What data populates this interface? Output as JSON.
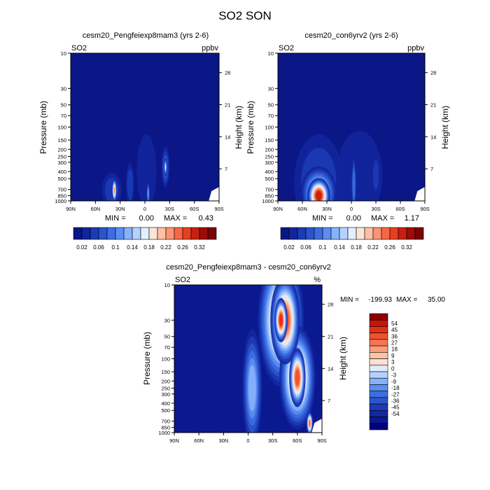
{
  "title": "SO2 SON",
  "colors": {
    "navy": "#000080",
    "abs_scale": [
      "#0b1687",
      "#12259c",
      "#1a3bb3",
      "#2a54cc",
      "#3d6ee0",
      "#5b8ef0",
      "#86b1fb",
      "#b5d1fd",
      "#e3effe",
      "#fde4d8",
      "#fcc0a6",
      "#fa9474",
      "#f56845",
      "#e8401f",
      "#c72010",
      "#9c0d08",
      "#7a0504"
    ],
    "diff_scale": [
      "#000080",
      "#0a198f",
      "#13279f",
      "#1d3bb5",
      "#2b55cc",
      "#3d6ee0",
      "#5b8ef0",
      "#86b1fb",
      "#b5d1fd",
      "#e0ebfe",
      "#fde2d3",
      "#fcc3a6",
      "#fb9c7c",
      "#f57550",
      "#ee5230",
      "#e33015",
      "#c41508",
      "#8b0000"
    ]
  },
  "chart_data": [
    {
      "type": "heatmap",
      "title": "cesm20_Pengfeiexp8mam3 (yrs 2-6)",
      "variable": "SO2",
      "units": "ppbv",
      "ylabel": "Pressure (mb)",
      "ylabel_right": "Height (km)",
      "x_ticks": [
        "90N",
        "60N",
        "30N",
        "0",
        "30S",
        "60S",
        "90S"
      ],
      "y_ticks": [
        10,
        30,
        50,
        70,
        100,
        150,
        200,
        250,
        300,
        400,
        500,
        700,
        850,
        1000
      ],
      "y_right_ticks": [
        28,
        21,
        14,
        7
      ],
      "ylim": [
        1000,
        10
      ],
      "stats": {
        "min_label": "MIN =",
        "min": "0.00",
        "max_label": "MAX =",
        "max": "0.43"
      },
      "colorbar_labels": [
        "0.02",
        "0.06",
        "0.1",
        "0.14",
        "0.18",
        "0.22",
        "0.26",
        "0.32"
      ],
      "features": [
        {
          "lat": -2,
          "p": 400,
          "w": 12,
          "h": 0.25,
          "level": 1
        },
        {
          "lat": -25,
          "p": 350,
          "w": 5,
          "h": 0.14,
          "level": 3
        },
        {
          "lat": -25,
          "p": 350,
          "w": 2,
          "h": 0.06,
          "level": 7
        },
        {
          "lat": 37,
          "p": 720,
          "w": 3,
          "h": 0.08,
          "level": 11
        },
        {
          "lat": 40,
          "p": 720,
          "w": 12,
          "h": 0.12,
          "level": 2
        },
        {
          "lat": 18,
          "p": 600,
          "w": 5,
          "h": 0.15,
          "level": 2
        },
        {
          "lat": -4,
          "p": 800,
          "w": 2,
          "h": 0.08,
          "level": 5
        }
      ]
    },
    {
      "type": "heatmap",
      "title": "cesm20_con6yrv2 (yrs 2-6)",
      "variable": "SO2",
      "units": "ppbv",
      "ylabel": "Pressure (mb)",
      "ylabel_right": "Height (km)",
      "x_ticks": [
        "90N",
        "60N",
        "30N",
        "0",
        "30S",
        "60S",
        "90S"
      ],
      "y_ticks": [
        10,
        30,
        50,
        70,
        100,
        150,
        200,
        250,
        300,
        400,
        500,
        700,
        850,
        1000
      ],
      "y_right_ticks": [
        28,
        21,
        14,
        7
      ],
      "ylim": [
        1000,
        10
      ],
      "stats": {
        "min_label": "MIN =",
        "min": "0.00",
        "max_label": "MAX =",
        "max": "1.17"
      },
      "colorbar_labels": [
        "0.02",
        "0.06",
        "0.1",
        "0.14",
        "0.18",
        "0.22",
        "0.26",
        "0.32"
      ],
      "features": [
        {
          "lat": -10,
          "p": 450,
          "w": 28,
          "h": 0.3,
          "level": 1
        },
        {
          "lat": 40,
          "p": 550,
          "w": 30,
          "h": 0.32,
          "level": 2
        },
        {
          "lat": 40,
          "p": 780,
          "w": 22,
          "h": 0.18,
          "level": 8
        },
        {
          "lat": 40,
          "p": 850,
          "w": 14,
          "h": 0.12,
          "level": 14
        },
        {
          "lat": -3,
          "p": 600,
          "w": 3,
          "h": 0.2,
          "level": 4
        },
        {
          "lat": -30,
          "p": 450,
          "w": 5,
          "h": 0.14,
          "level": 2
        }
      ]
    },
    {
      "type": "heatmap",
      "title": "cesm20_Pengfeiexp8mam3 - cesm20_con6yrv2",
      "variable": "SO2",
      "units": "%",
      "ylabel": "Pressure (mb)",
      "ylabel_right": "Height (km)",
      "x_ticks": [
        "90N",
        "60N",
        "30N",
        "0",
        "30S",
        "60S",
        "90S"
      ],
      "y_ticks": [
        10,
        30,
        50,
        70,
        100,
        150,
        200,
        250,
        300,
        400,
        500,
        700,
        850,
        1000
      ],
      "y_right_ticks": [
        28,
        21,
        14,
        7
      ],
      "ylim": [
        1000,
        10
      ],
      "stats": {
        "min_label": "MIN =",
        "min": "-199.93",
        "max_label": "MAX =",
        "max": "35.00"
      },
      "colorbar_labels": [
        "54",
        "45",
        "36",
        "27",
        "18",
        "9",
        "3",
        "0",
        "-3",
        "-9",
        "-18",
        "-27",
        "-36",
        "-45",
        "-54"
      ],
      "features": [
        {
          "lat": -40,
          "p": 30,
          "w": 28,
          "h": 0.45,
          "level": 11
        },
        {
          "lat": -45,
          "p": 30,
          "w": 18,
          "h": 0.3,
          "level": 13
        },
        {
          "lat": -40,
          "p": 30,
          "w": 8,
          "h": 0.15,
          "level": 14
        },
        {
          "lat": -60,
          "p": 180,
          "w": 22,
          "h": 0.35,
          "level": 11
        },
        {
          "lat": -60,
          "p": 180,
          "w": 10,
          "h": 0.2,
          "level": 13
        },
        {
          "lat": -5,
          "p": 250,
          "w": 12,
          "h": 0.4,
          "level": 6
        },
        {
          "lat": -75,
          "p": 750,
          "w": 4,
          "h": 0.08,
          "level": 12
        }
      ]
    }
  ]
}
